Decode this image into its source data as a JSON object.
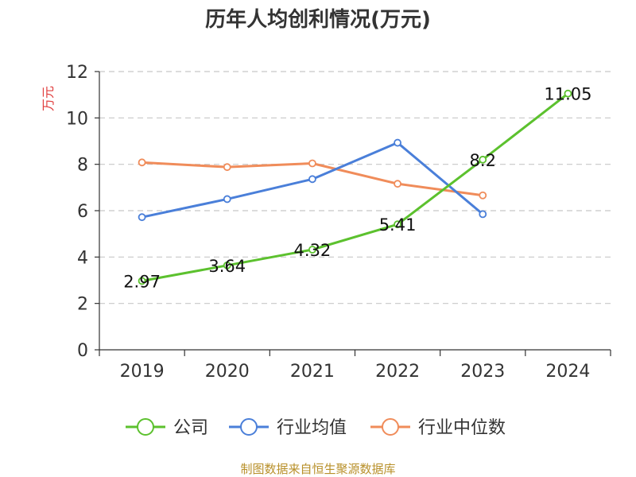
{
  "chart_data": {
    "type": "line",
    "title": "历年人均创利情况(万元)",
    "ylabel": "万元",
    "xlabel": "",
    "categories": [
      "2019",
      "2020",
      "2021",
      "2022",
      "2023",
      "2024"
    ],
    "ylim": [
      0,
      12
    ],
    "yticks": [
      0,
      2,
      4,
      6,
      8,
      10,
      12
    ],
    "grid": true,
    "legend_position": "bottom",
    "series": [
      {
        "name": "公司",
        "color": "#5cc12e",
        "values": [
          2.97,
          3.64,
          4.32,
          5.41,
          8.2,
          11.05
        ],
        "labels": [
          "2.97",
          "3.64",
          "4.32",
          "5.41",
          "8.2",
          "11.05"
        ]
      },
      {
        "name": "行业均值",
        "color": "#4a7fd9",
        "values": [
          5.72,
          6.5,
          7.36,
          8.93,
          5.85,
          null
        ]
      },
      {
        "name": "行业中位数",
        "color": "#f08c5a",
        "values": [
          8.08,
          7.88,
          8.04,
          7.16,
          6.66,
          null
        ]
      }
    ],
    "source": "制图数据来自恒生聚源数据库"
  }
}
